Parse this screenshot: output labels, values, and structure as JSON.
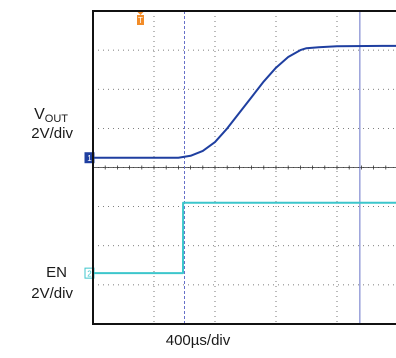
{
  "chart_data": {
    "type": "line",
    "title": "",
    "xlabel": "400µs/div",
    "x_unit": "µs",
    "x_per_div": 400,
    "x_divisions": 10,
    "xlim": [
      0,
      4000
    ],
    "grid": true,
    "channels": [
      {
        "id": "1",
        "name": "VOUT",
        "label_main": "V",
        "label_sub": "OUT",
        "scale": "2V/div",
        "color": "#1f3fa0",
        "v_per_div": 2,
        "ground_div": 4.25,
        "x": [
          0,
          340,
          560,
          640,
          720,
          800,
          880,
          960,
          1040,
          1120,
          1200,
          1280,
          1360,
          1400,
          1480,
          1600,
          2000,
          2400,
          2800,
          3200,
          3600,
          4000
        ],
        "y": [
          0,
          0,
          0,
          0.1,
          0.35,
          0.8,
          1.5,
          2.3,
          3.1,
          3.9,
          4.6,
          5.15,
          5.5,
          5.6,
          5.65,
          5.7,
          5.72,
          5.74,
          5.75,
          5.76,
          5.77,
          5.77
        ]
      },
      {
        "id": "2",
        "name": "EN",
        "label_main": "EN",
        "label_sub": "",
        "scale": "2V/div",
        "color": "#3cc6cc",
        "v_per_div": 2,
        "ground_div": 1.3,
        "x": [
          0,
          590,
          591,
          4000
        ],
        "y": [
          0,
          0,
          3.6,
          3.6
        ]
      }
    ],
    "trigger_marker": "T",
    "trigger_x": 600,
    "trigger_color": "#f28c28",
    "cursors_x": [
      600,
      1750
    ],
    "cursor_color": "#6670c8"
  },
  "labels": {
    "vout_main": "V",
    "vout_sub": "OUT",
    "vout_scale": "2V/div",
    "en_main": "EN",
    "en_scale": "2V/div",
    "time_scale": "400µs/div"
  }
}
